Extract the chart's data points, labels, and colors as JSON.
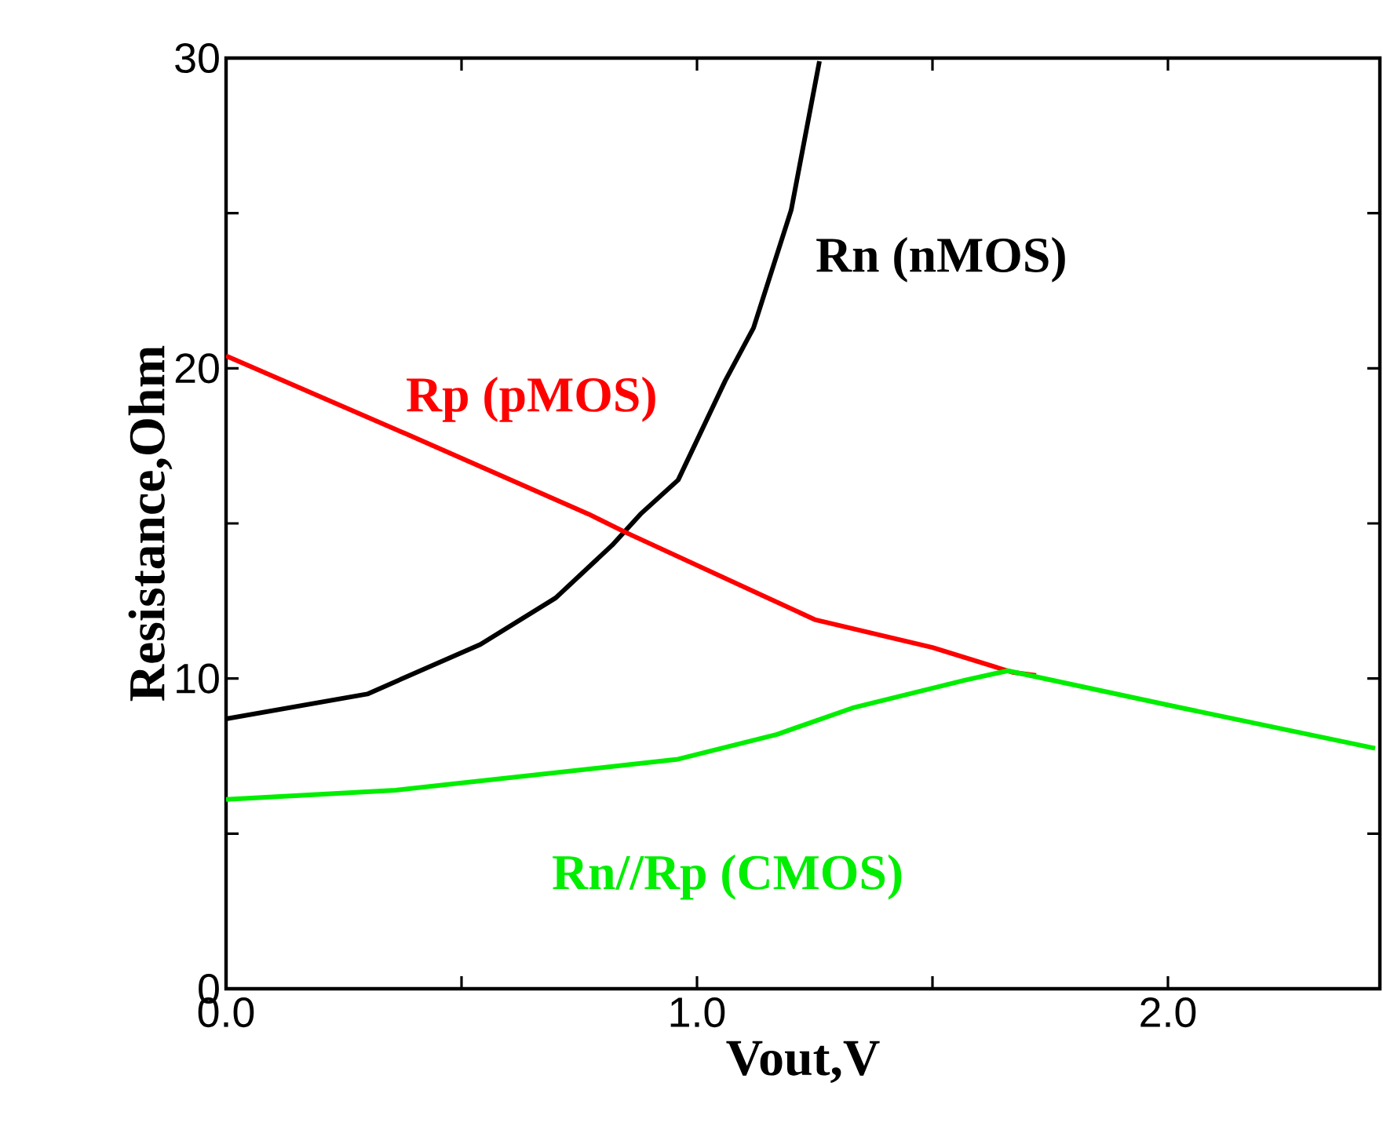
{
  "chart_data": {
    "type": "line",
    "xlabel": "Vout,V",
    "ylabel": "Resistance,Ohm",
    "xlim": [
      0,
      2.45
    ],
    "ylim": [
      0,
      30
    ],
    "xticks": [
      {
        "value": 0,
        "label": "0.0"
      },
      {
        "value": 0.5,
        "label": null
      },
      {
        "value": 1,
        "label": "1.0"
      },
      {
        "value": 1.5,
        "label": null
      },
      {
        "value": 2,
        "label": "2.0"
      }
    ],
    "yticks": [
      {
        "value": 0,
        "label": "0"
      },
      {
        "value": 5,
        "label": null
      },
      {
        "value": 10,
        "label": "10"
      },
      {
        "value": 15,
        "label": null
      },
      {
        "value": 20,
        "label": "20"
      },
      {
        "value": 25,
        "label": null
      },
      {
        "value": 30,
        "label": "30"
      }
    ],
    "grid": false,
    "legend": false,
    "series": [
      {
        "name": "Rn (nMOS)",
        "color": "#000000",
        "x": [
          0,
          0.3,
          0.54,
          0.7,
          0.82,
          0.88,
          0.96,
          1.06,
          1.12,
          1.2,
          1.26
        ],
        "values": [
          8.7,
          9.5,
          11.1,
          12.6,
          14.3,
          15.3,
          16.4,
          19.6,
          21.3,
          25.1,
          29.9
        ]
      },
      {
        "name": "Rp (pMOS)",
        "color": "#ff0000",
        "x": [
          0,
          0.38,
          0.77,
          0.85,
          1.25,
          1.5,
          1.67,
          1.72
        ],
        "values": [
          20.4,
          17.9,
          15.3,
          14.7,
          11.9,
          11.0,
          10.2,
          10.1
        ]
      },
      {
        "name": "Rn//Rp (CMOS)",
        "color": "#00ee00",
        "x": [
          0,
          0.36,
          0.96,
          1.17,
          1.33,
          1.57,
          1.66,
          2.03,
          2.44
        ],
        "values": [
          6.1,
          6.4,
          7.4,
          8.2,
          9.05,
          9.95,
          10.25,
          9.05,
          7.75
        ]
      }
    ]
  }
}
